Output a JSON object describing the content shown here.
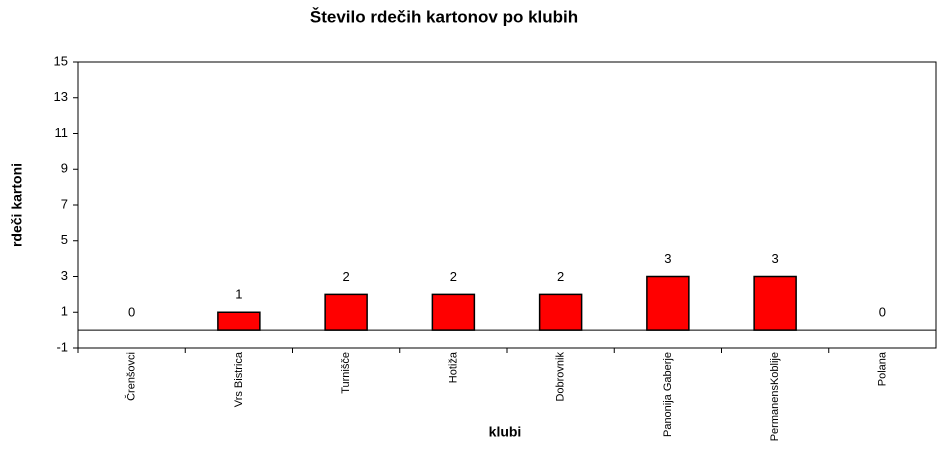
{
  "chart_data": {
    "type": "bar",
    "title": "Število rdečih kartonov po klubih",
    "x_label": "klubi",
    "y_label": "rdeči kartoni",
    "categories": [
      "Črenšovci",
      "Vrs Bistrica",
      "Turnišče",
      "Hotiža",
      "Dobrovnik",
      "Panonija Gaberje",
      "PermanensKoblije",
      "Polana"
    ],
    "values": [
      0,
      1,
      2,
      2,
      2,
      3,
      3,
      0
    ],
    "color": "#ff0000",
    "ylim": [
      -1,
      15
    ],
    "yticks": [
      -1,
      1,
      3,
      5,
      7,
      9,
      11,
      13,
      15
    ],
    "grid": false
  }
}
